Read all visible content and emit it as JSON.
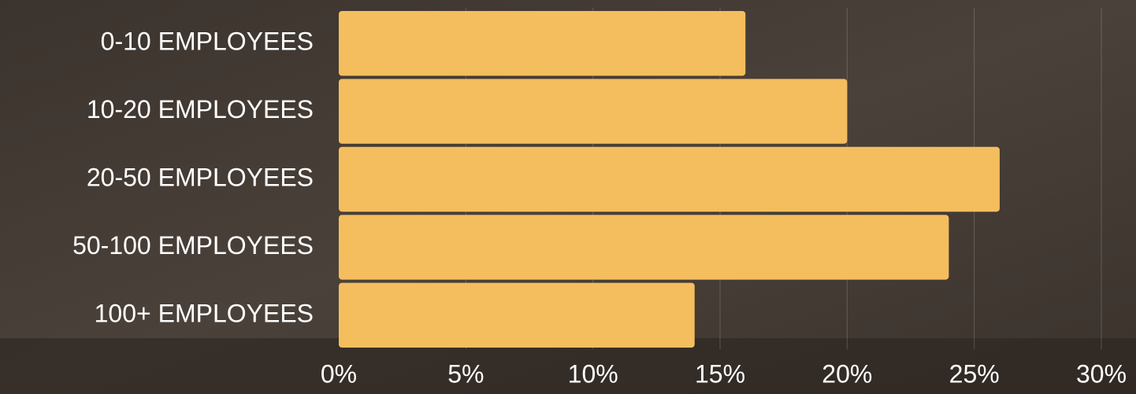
{
  "chart_data": {
    "type": "bar",
    "orientation": "horizontal",
    "categories": [
      "0-10 EMPLOYEES",
      "10-20 EMPLOYEES",
      "20-50 EMPLOYEES",
      "50-100 EMPLOYEES",
      "100+ EMPLOYEES"
    ],
    "values": [
      16,
      20,
      26,
      24,
      14
    ],
    "color": "#f4be5e",
    "xlim": [
      0,
      30
    ],
    "xticks": [
      {
        "value": 0,
        "label": "0%"
      },
      {
        "value": 5,
        "label": "5%"
      },
      {
        "value": 10,
        "label": "10%"
      },
      {
        "value": 15,
        "label": "15%"
      },
      {
        "value": 20,
        "label": "20%"
      },
      {
        "value": 25,
        "label": "25%"
      },
      {
        "value": 30,
        "label": "30%"
      }
    ],
    "grid": true
  }
}
